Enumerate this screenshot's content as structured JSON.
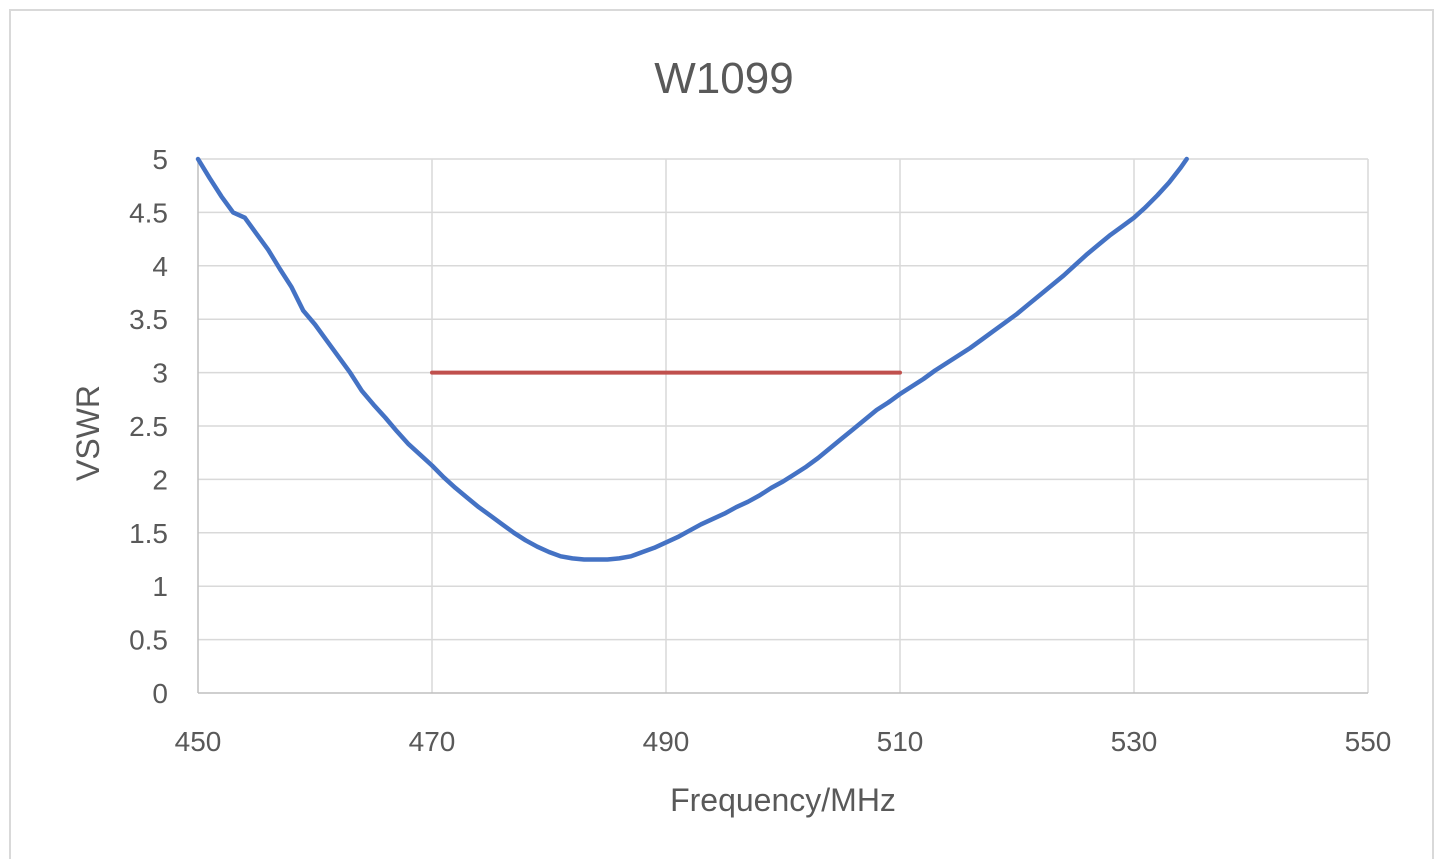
{
  "chart_data": {
    "type": "line",
    "title": "W1099",
    "xlabel": "Frequency/MHz",
    "ylabel": "VSWR",
    "xlim": [
      450,
      550
    ],
    "ylim": [
      0,
      5
    ],
    "x_ticks": [
      450,
      470,
      490,
      510,
      530,
      550
    ],
    "y_ticks": [
      0,
      0.5,
      1,
      1.5,
      2,
      2.5,
      3,
      3.5,
      4,
      4.5,
      5
    ],
    "grid": true,
    "legend": "none",
    "series": [
      {
        "color": "#4472c4",
        "x": [
          450,
          451,
          452,
          453,
          454,
          455,
          456,
          457,
          458,
          459,
          460,
          461,
          462,
          463,
          464,
          465,
          466,
          467,
          468,
          469,
          470,
          471,
          472,
          473,
          474,
          475,
          476,
          477,
          478,
          479,
          480,
          481,
          482,
          483,
          484,
          485,
          486,
          487,
          488,
          489,
          490,
          491,
          492,
          493,
          494,
          495,
          496,
          497,
          498,
          499,
          500,
          501,
          502,
          503,
          504,
          505,
          506,
          507,
          508,
          509,
          510,
          511,
          512,
          513,
          514,
          515,
          516,
          517,
          518,
          519,
          520,
          521,
          522,
          523,
          524,
          525,
          526,
          527,
          528,
          529,
          530,
          531,
          532,
          533,
          534,
          534.5
        ],
        "y": [
          5.0,
          4.82,
          4.65,
          4.5,
          4.45,
          4.3,
          4.15,
          3.97,
          3.8,
          3.58,
          3.45,
          3.3,
          3.15,
          3.0,
          2.83,
          2.7,
          2.58,
          2.45,
          2.33,
          2.23,
          2.13,
          2.02,
          1.92,
          1.83,
          1.74,
          1.66,
          1.58,
          1.5,
          1.43,
          1.37,
          1.32,
          1.28,
          1.26,
          1.25,
          1.25,
          1.25,
          1.26,
          1.28,
          1.32,
          1.36,
          1.41,
          1.46,
          1.52,
          1.58,
          1.63,
          1.68,
          1.74,
          1.79,
          1.85,
          1.92,
          1.98,
          2.05,
          2.12,
          2.2,
          2.29,
          2.38,
          2.47,
          2.56,
          2.65,
          2.72,
          2.8,
          2.87,
          2.94,
          3.02,
          3.09,
          3.16,
          3.23,
          3.31,
          3.39,
          3.47,
          3.55,
          3.64,
          3.73,
          3.82,
          3.91,
          4.01,
          4.11,
          4.2,
          4.29,
          4.37,
          4.45,
          4.55,
          4.66,
          4.78,
          4.92,
          5.0
        ]
      },
      {
        "color": "#c0504d",
        "x": [
          470,
          510
        ],
        "y": [
          3,
          3
        ]
      }
    ]
  }
}
